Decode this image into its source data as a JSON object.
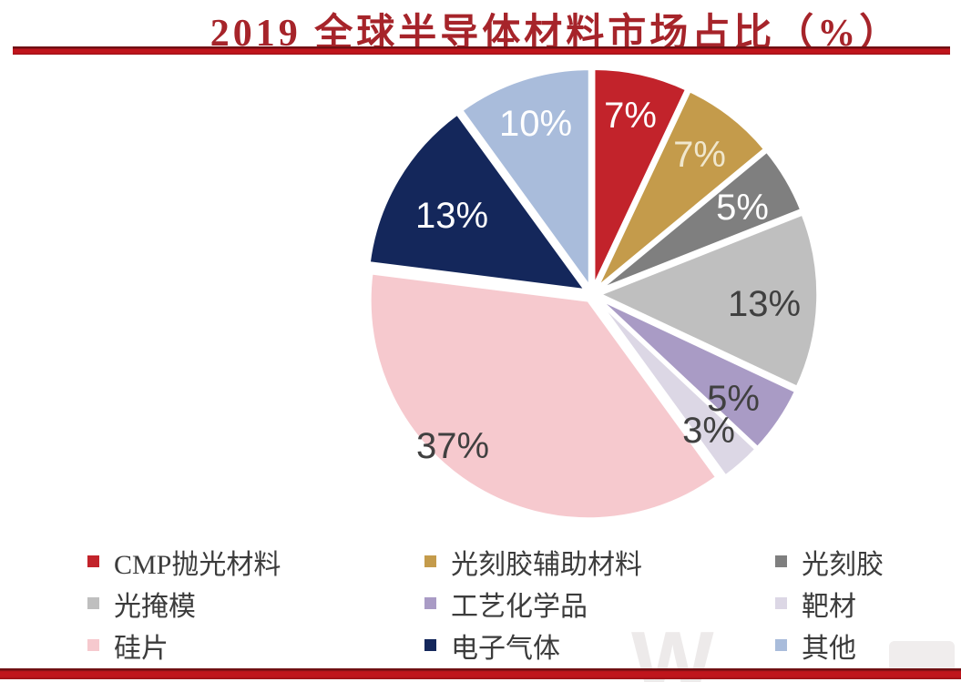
{
  "title": "2019 全球半导体材料市场占比（%）",
  "chart_data": {
    "type": "pie",
    "title": "2019 全球半导体材料市场占比（%）",
    "unit": "%",
    "start_angle_deg": 0,
    "direction": "clockwise",
    "legend_position": "bottom",
    "total": 100,
    "series": [
      {
        "name": "CMP抛光材料",
        "value": 7,
        "label": "7%",
        "color": "#C2232B",
        "label_color": "#FFFFFF"
      },
      {
        "name": "光刻胶辅助材料",
        "value": 7,
        "label": "7%",
        "color": "#C49B4B",
        "label_color": "#F0E7CD"
      },
      {
        "name": "光刻胶",
        "value": 5,
        "label": "5%",
        "color": "#7F7F7F",
        "label_color": "#FFFFFF"
      },
      {
        "name": "光掩模",
        "value": 13,
        "label": "13%",
        "color": "#BFBFBF",
        "label_color": "#404040"
      },
      {
        "name": "工艺化学品",
        "value": 5,
        "label": "5%",
        "color": "#A99BC5",
        "label_color": "#404040"
      },
      {
        "name": "靶材",
        "value": 3,
        "label": "3%",
        "color": "#DCD7E5",
        "label_color": "#404040"
      },
      {
        "name": "硅片",
        "value": 37,
        "label": "37%",
        "color": "#F6C9CE",
        "label_color": "#404040"
      },
      {
        "name": "电子气体",
        "value": 13,
        "label": "13%",
        "color": "#14275B",
        "label_color": "#FFFFFF"
      },
      {
        "name": "其他",
        "value": 10,
        "label": "10%",
        "color": "#A9BCDB",
        "label_color": "#FFFFFF"
      }
    ]
  },
  "accent_colors": {
    "title_text": "#A6242A",
    "rule_red": "#C0151C",
    "legend_text": "#3C3C3C"
  },
  "watermark": "W"
}
